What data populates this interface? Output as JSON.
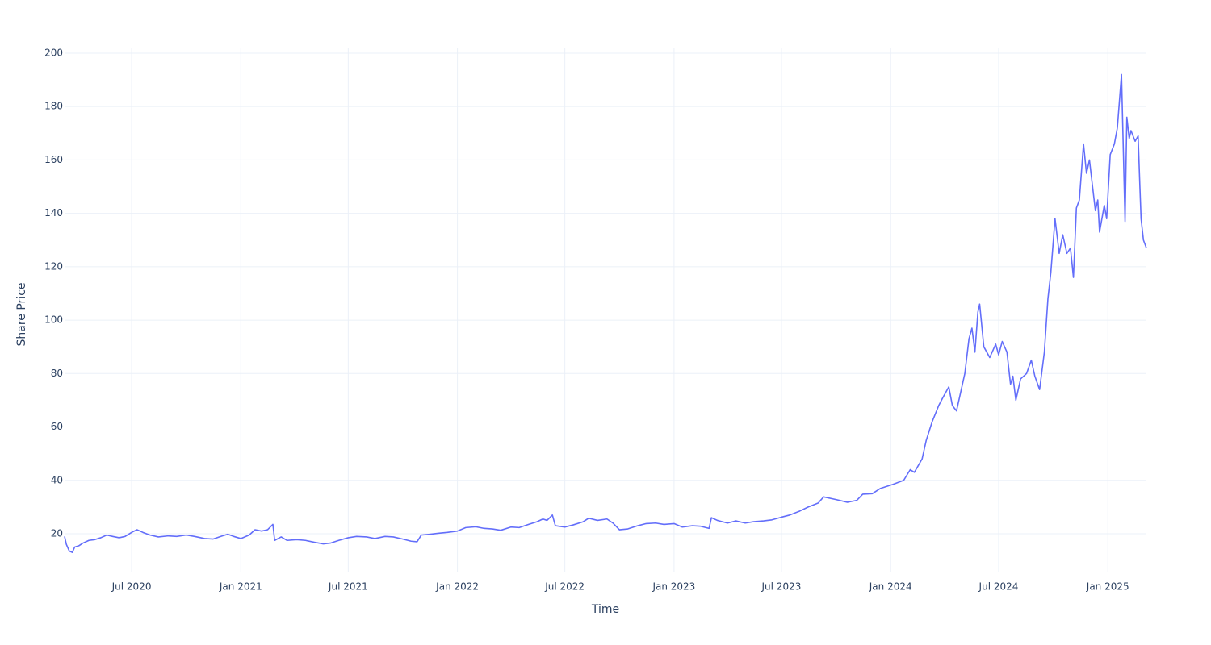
{
  "chart_data": {
    "type": "line",
    "x_label": "Time",
    "y_label": "Share Price",
    "grid": true,
    "xlim": [
      "2020-03-10",
      "2025-03-07"
    ],
    "ylim": [
      5.5,
      201.8
    ],
    "xticks": [
      {
        "value": "2020-07-01",
        "label": "Jul 2020"
      },
      {
        "value": "2021-01-01",
        "label": "Jan 2021"
      },
      {
        "value": "2021-07-01",
        "label": "Jul 2021"
      },
      {
        "value": "2022-01-01",
        "label": "Jan 2022"
      },
      {
        "value": "2022-07-01",
        "label": "Jul 2022"
      },
      {
        "value": "2023-01-01",
        "label": "Jan 2023"
      },
      {
        "value": "2023-07-01",
        "label": "Jul 2023"
      },
      {
        "value": "2024-01-01",
        "label": "Jan 2024"
      },
      {
        "value": "2024-07-01",
        "label": "Jul 2024"
      },
      {
        "value": "2025-01-01",
        "label": "Jan 2025"
      }
    ],
    "yticks": [
      20,
      40,
      60,
      80,
      100,
      120,
      140,
      160,
      180,
      200
    ],
    "x": [
      "2020-03-10",
      "2020-03-13",
      "2020-03-18",
      "2020-03-23",
      "2020-03-27",
      "2020-04-03",
      "2020-04-10",
      "2020-04-20",
      "2020-04-30",
      "2020-05-10",
      "2020-05-20",
      "2020-05-30",
      "2020-06-10",
      "2020-06-20",
      "2020-07-01",
      "2020-07-10",
      "2020-07-20",
      "2020-08-01",
      "2020-08-15",
      "2020-09-01",
      "2020-09-15",
      "2020-10-01",
      "2020-10-15",
      "2020-11-01",
      "2020-11-15",
      "2020-12-01",
      "2020-12-10",
      "2020-12-20",
      "2021-01-01",
      "2021-01-15",
      "2021-01-25",
      "2021-02-05",
      "2021-02-15",
      "2021-02-24",
      "2021-02-27",
      "2021-03-10",
      "2021-03-20",
      "2021-04-05",
      "2021-04-20",
      "2021-05-05",
      "2021-05-20",
      "2021-06-01",
      "2021-06-15",
      "2021-07-01",
      "2021-07-15",
      "2021-08-01",
      "2021-08-15",
      "2021-09-01",
      "2021-09-15",
      "2021-10-01",
      "2021-10-15",
      "2021-10-25",
      "2021-11-01",
      "2021-11-15",
      "2021-12-01",
      "2021-12-15",
      "2022-01-01",
      "2022-01-15",
      "2022-02-01",
      "2022-02-15",
      "2022-03-01",
      "2022-03-15",
      "2022-04-01",
      "2022-04-15",
      "2022-05-01",
      "2022-05-15",
      "2022-05-25",
      "2022-06-01",
      "2022-06-10",
      "2022-06-15",
      "2022-07-01",
      "2022-07-15",
      "2022-08-01",
      "2022-08-10",
      "2022-08-25",
      "2022-09-10",
      "2022-09-20",
      "2022-10-01",
      "2022-10-15",
      "2022-11-01",
      "2022-11-15",
      "2022-12-01",
      "2022-12-15",
      "2023-01-01",
      "2023-01-15",
      "2023-02-01",
      "2023-02-15",
      "2023-03-01",
      "2023-03-05",
      "2023-03-15",
      "2023-04-01",
      "2023-04-15",
      "2023-05-01",
      "2023-05-15",
      "2023-06-01",
      "2023-06-15",
      "2023-07-01",
      "2023-07-15",
      "2023-08-01",
      "2023-08-15",
      "2023-09-01",
      "2023-09-10",
      "2023-10-01",
      "2023-10-20",
      "2023-11-05",
      "2023-11-15",
      "2023-12-01",
      "2023-12-15",
      "2024-01-05",
      "2024-01-23",
      "2024-02-03",
      "2024-02-10",
      "2024-02-23",
      "2024-03-01",
      "2024-03-11",
      "2024-03-22",
      "2024-03-29",
      "2024-04-08",
      "2024-04-14",
      "2024-04-21",
      "2024-05-05",
      "2024-05-12",
      "2024-05-17",
      "2024-05-22",
      "2024-05-27",
      "2024-05-30",
      "2024-06-06",
      "2024-06-16",
      "2024-06-26",
      "2024-07-01",
      "2024-07-07",
      "2024-07-15",
      "2024-07-21",
      "2024-07-25",
      "2024-07-30",
      "2024-08-07",
      "2024-08-17",
      "2024-08-25",
      "2024-08-31",
      "2024-09-08",
      "2024-09-16",
      "2024-09-22",
      "2024-09-27",
      "2024-10-04",
      "2024-10-11",
      "2024-10-17",
      "2024-10-24",
      "2024-10-30",
      "2024-11-04",
      "2024-11-09",
      "2024-11-14",
      "2024-11-21",
      "2024-11-26",
      "2024-12-01",
      "2024-12-11",
      "2024-12-15",
      "2024-12-18",
      "2024-12-26",
      "2024-12-30",
      "2025-01-05",
      "2025-01-12",
      "2025-01-17",
      "2025-01-24",
      "2025-01-30",
      "2025-02-02",
      "2025-02-06",
      "2025-02-09",
      "2025-02-16",
      "2025-02-21",
      "2025-02-24",
      "2025-02-26",
      "2025-03-02",
      "2025-03-07"
    ],
    "series": [
      {
        "name": "Share Price",
        "color": "#636efa",
        "values": [
          19,
          16,
          13.5,
          13,
          15,
          15.5,
          16.5,
          17.5,
          17.8,
          18.5,
          19.5,
          19,
          18.5,
          19,
          20.5,
          21.5,
          20.5,
          19.5,
          18.8,
          19.2,
          19,
          19.5,
          19,
          18.2,
          18,
          19.2,
          19.8,
          19,
          18.2,
          19.5,
          21.5,
          21,
          21.5,
          23.5,
          17.5,
          18.8,
          17.5,
          17.8,
          17.5,
          16.8,
          16.2,
          16.5,
          17.5,
          18.5,
          19,
          18.8,
          18.2,
          19,
          18.8,
          18,
          17.2,
          17,
          19.5,
          19.8,
          20.2,
          20.5,
          21,
          22.3,
          22.6,
          22,
          21.8,
          21.3,
          22.5,
          22.3,
          23.5,
          24.5,
          25.5,
          25,
          27,
          23,
          22.5,
          23.3,
          24.5,
          25.8,
          25,
          25.5,
          24,
          21.5,
          21.8,
          23,
          23.8,
          24,
          23.5,
          23.8,
          22.5,
          23,
          22.8,
          22,
          26,
          25,
          24,
          24.8,
          24,
          24.5,
          24.8,
          25.2,
          26.2,
          27,
          28.5,
          30,
          31.5,
          33.8,
          32.8,
          31.8,
          32.5,
          34.8,
          35,
          37,
          38.5,
          40,
          44,
          43,
          48,
          55,
          62,
          68,
          71,
          75,
          68,
          66,
          80,
          93,
          97,
          88,
          103,
          106,
          90,
          86,
          91,
          87,
          92,
          88,
          76,
          79,
          70,
          78,
          80,
          85,
          79,
          74,
          88,
          108,
          118,
          138,
          125,
          132,
          125,
          127,
          116,
          142,
          145,
          166,
          155,
          160,
          141,
          145,
          133,
          143,
          138,
          162,
          166,
          172,
          192,
          137,
          176,
          168,
          171,
          167,
          169,
          150,
          138,
          130,
          127
        ]
      }
    ]
  }
}
